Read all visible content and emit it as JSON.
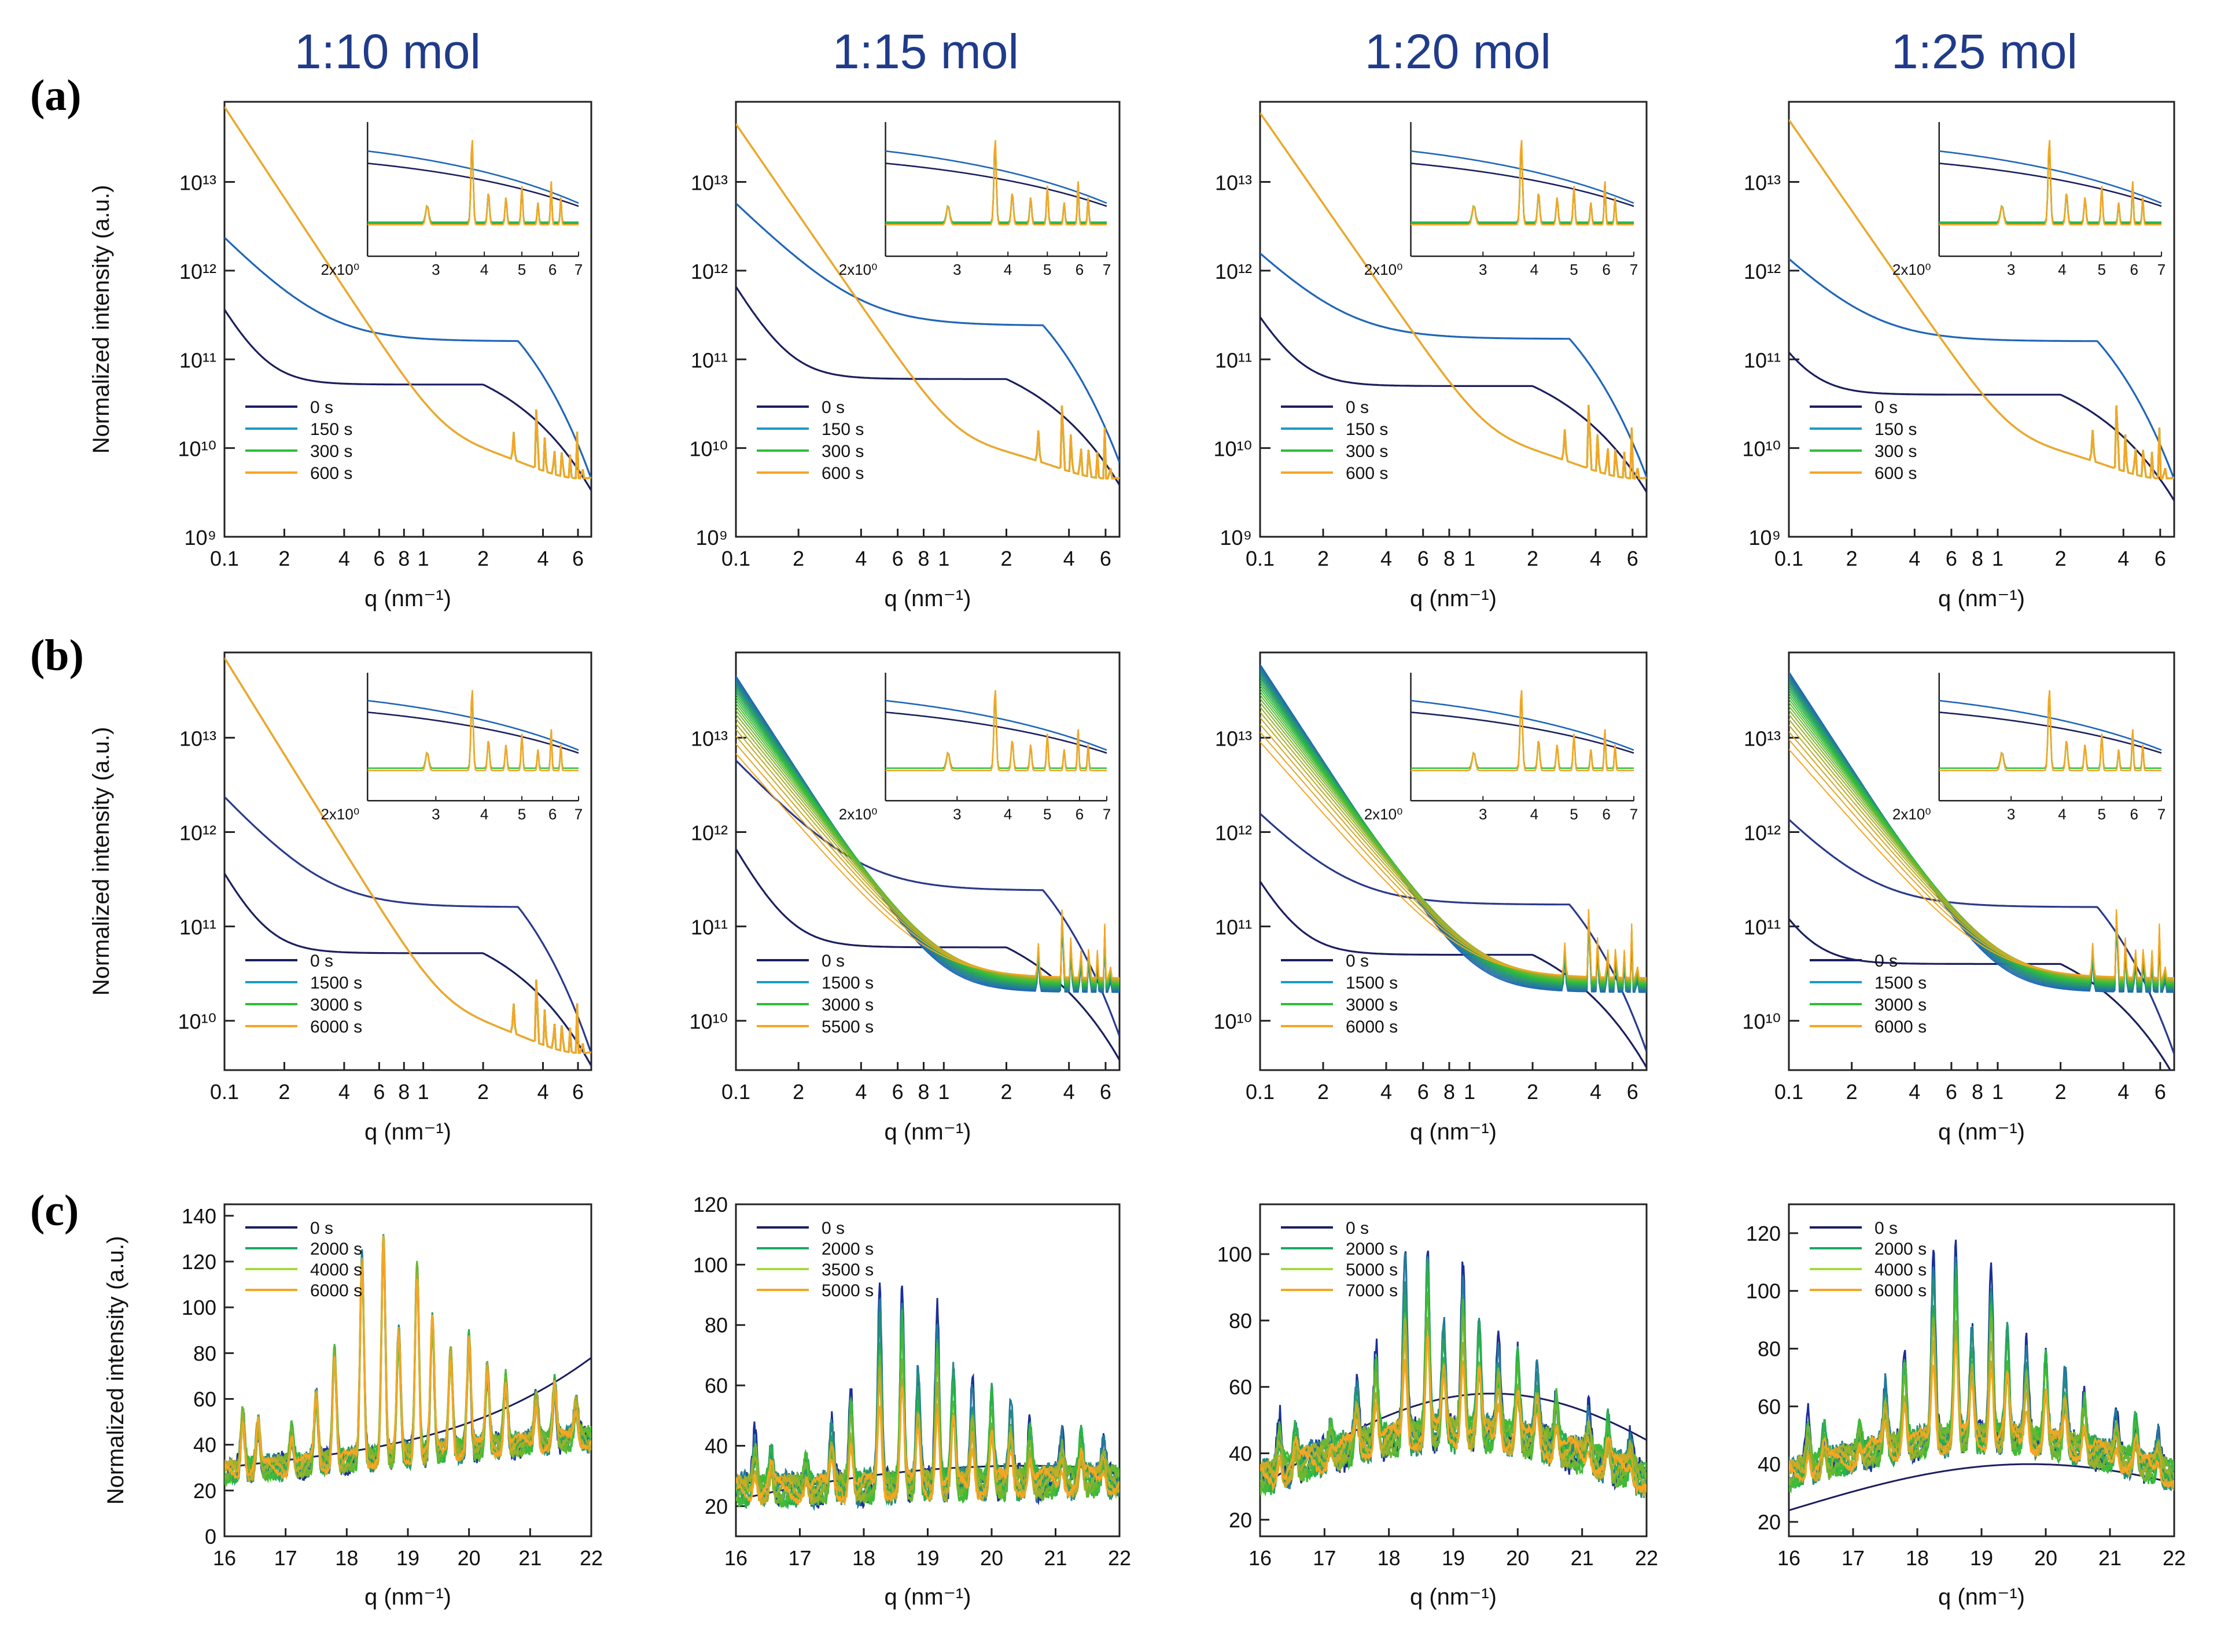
{
  "column_titles": [
    "1:10 mol",
    "1:15 mol",
    "1:20 mol",
    "1:25 mol"
  ],
  "row_labels": [
    "(a)",
    "(b)",
    "(c)"
  ],
  "colors": {
    "title": "#1f3b8a",
    "s0": "#1b1f5e",
    "s1": "#1f66b8",
    "s2": "#2dbd3a",
    "s3": "#f5a623"
  },
  "chart_data": [
    {
      "type": "line",
      "row": "a",
      "col": 0,
      "xscale": "log",
      "yscale": "log",
      "xlim": [
        0.1,
        7
      ],
      "ylim": [
        1000000000.0,
        80000000000000.0
      ],
      "xlabel": "q (nm⁻¹)",
      "ylabel": "Normalized intensity (a.u.)",
      "xticks": [
        "0.1",
        "2",
        "4",
        "6",
        "8",
        "1",
        "2",
        "4",
        "6"
      ],
      "yticks": [
        "10⁹",
        "10¹⁰",
        "10¹¹",
        "10¹²",
        "10¹³"
      ],
      "legend": [
        "0 s",
        "150 s",
        "300 s",
        "600 s"
      ],
      "inset": {
        "xticks": [
          "2x10⁰",
          "3",
          "4",
          "5",
          "6",
          "7"
        ]
      }
    },
    {
      "type": "line",
      "row": "a",
      "col": 1,
      "xscale": "log",
      "yscale": "log",
      "xlim": [
        0.1,
        7
      ],
      "ylim": [
        1000000000.0,
        80000000000000.0
      ],
      "xlabel": "q (nm⁻¹)",
      "ylabel": "",
      "xticks": [
        "0.1",
        "2",
        "4",
        "6",
        "8",
        "1",
        "2",
        "4",
        "6"
      ],
      "yticks": [
        "10⁹",
        "10¹⁰",
        "10¹¹",
        "10¹²",
        "10¹³"
      ],
      "legend": [
        "0 s",
        "150 s",
        "300 s",
        "600 s"
      ],
      "inset": {
        "xticks": [
          "2x10⁰",
          "3",
          "4",
          "5",
          "6",
          "7"
        ]
      }
    },
    {
      "type": "line",
      "row": "a",
      "col": 2,
      "xscale": "log",
      "yscale": "log",
      "xlim": [
        0.1,
        7
      ],
      "ylim": [
        1000000000.0,
        80000000000000.0
      ],
      "xlabel": "q (nm⁻¹)",
      "ylabel": "",
      "xticks": [
        "0.1",
        "2",
        "4",
        "6",
        "8",
        "1",
        "2",
        "4",
        "6"
      ],
      "yticks": [
        "10⁹",
        "10¹⁰",
        "10¹¹",
        "10¹²",
        "10¹³"
      ],
      "legend": [
        "0 s",
        "150 s",
        "300 s",
        "600 s"
      ],
      "inset": {
        "xticks": [
          "2x10⁰",
          "3",
          "4",
          "5",
          "6",
          "7"
        ]
      }
    },
    {
      "type": "line",
      "row": "a",
      "col": 3,
      "xscale": "log",
      "yscale": "log",
      "xlim": [
        0.1,
        7
      ],
      "ylim": [
        1000000000.0,
        80000000000000.0
      ],
      "xlabel": "q (nm⁻¹)",
      "ylabel": "",
      "xticks": [
        "0.1",
        "2",
        "4",
        "6",
        "8",
        "1",
        "2",
        "4",
        "6"
      ],
      "yticks": [
        "10⁹",
        "10¹⁰",
        "10¹¹",
        "10¹²",
        "10¹³"
      ],
      "legend": [
        "0 s",
        "150 s",
        "300 s",
        "600 s"
      ],
      "inset": {
        "xticks": [
          "2x10⁰",
          "3",
          "4",
          "5",
          "6",
          "7"
        ]
      }
    },
    {
      "type": "line",
      "row": "b",
      "col": 0,
      "xscale": "log",
      "yscale": "log",
      "xlim": [
        0.1,
        7
      ],
      "ylim": [
        3000000000.0,
        80000000000000.0
      ],
      "xlabel": "q (nm⁻¹)",
      "ylabel": "Normalized intensity (a.u.)",
      "xticks": [
        "0.1",
        "2",
        "4",
        "6",
        "8",
        "1",
        "2",
        "4",
        "6"
      ],
      "yticks": [
        "10¹⁰",
        "10¹¹",
        "10¹²",
        "10¹³"
      ],
      "legend": [
        "0 s",
        "1500 s",
        "3000 s",
        "6000 s"
      ],
      "inset": {
        "xticks": [
          "2x10⁰",
          "3",
          "4",
          "5",
          "6",
          "7"
        ]
      }
    },
    {
      "type": "line",
      "row": "b",
      "col": 1,
      "xscale": "log",
      "yscale": "log",
      "xlim": [
        0.1,
        7
      ],
      "ylim": [
        3000000000.0,
        80000000000000.0
      ],
      "xlabel": "q (nm⁻¹)",
      "ylabel": "",
      "xticks": [
        "0.1",
        "2",
        "4",
        "6",
        "8",
        "1",
        "2",
        "4",
        "6"
      ],
      "yticks": [
        "10¹⁰",
        "10¹¹",
        "10¹²",
        "10¹³"
      ],
      "legend": [
        "0 s",
        "1500 s",
        "3000 s",
        "5500 s"
      ],
      "inset": {
        "xticks": [
          "2x10⁰",
          "3",
          "4",
          "5",
          "6",
          "7"
        ]
      }
    },
    {
      "type": "line",
      "row": "b",
      "col": 2,
      "xscale": "log",
      "yscale": "log",
      "xlim": [
        0.1,
        7
      ],
      "ylim": [
        3000000000.0,
        80000000000000.0
      ],
      "xlabel": "q (nm⁻¹)",
      "ylabel": "",
      "xticks": [
        "0.1",
        "2",
        "4",
        "6",
        "8",
        "1",
        "2",
        "4",
        "6"
      ],
      "yticks": [
        "10¹⁰",
        "10¹¹",
        "10¹²",
        "10¹³"
      ],
      "legend": [
        "0 s",
        "1500 s",
        "3000 s",
        "6000 s"
      ],
      "inset": {
        "xticks": [
          "2x10⁰",
          "3",
          "4",
          "5",
          "6",
          "7"
        ]
      }
    },
    {
      "type": "line",
      "row": "b",
      "col": 3,
      "xscale": "log",
      "yscale": "log",
      "xlim": [
        0.1,
        7
      ],
      "ylim": [
        3000000000.0,
        80000000000000.0
      ],
      "xlabel": "q (nm⁻¹)",
      "ylabel": "",
      "xticks": [
        "0.1",
        "2",
        "4",
        "6",
        "8",
        "1",
        "2",
        "4",
        "6"
      ],
      "yticks": [
        "10¹⁰",
        "10¹¹",
        "10¹²",
        "10¹³"
      ],
      "legend": [
        "0 s",
        "1500 s",
        "3000 s",
        "6000 s"
      ],
      "inset": {
        "xticks": [
          "2x10⁰",
          "3",
          "4",
          "5",
          "6",
          "7"
        ]
      }
    },
    {
      "type": "line",
      "row": "c",
      "col": 0,
      "xscale": "linear",
      "yscale": "linear",
      "xlim": [
        16,
        22
      ],
      "ylim": [
        0,
        145
      ],
      "xlabel": "q (nm⁻¹)",
      "ylabel": "Normalized intensity (a.u.)",
      "xticks": [
        "16",
        "17",
        "18",
        "19",
        "20",
        "21",
        "22"
      ],
      "ytickvals": [
        0,
        20,
        40,
        60,
        80,
        100,
        120,
        140
      ],
      "yticks": [
        "0",
        "20",
        "40",
        "60",
        "80",
        "100",
        "120",
        "140"
      ],
      "legend": [
        "0 s",
        "2000 s",
        "4000 s",
        "6000 s"
      ]
    },
    {
      "type": "line",
      "row": "c",
      "col": 1,
      "xscale": "linear",
      "yscale": "linear",
      "xlim": [
        16,
        22
      ],
      "ylim": [
        10,
        120
      ],
      "xlabel": "q (nm⁻¹)",
      "ylabel": "",
      "xticks": [
        "16",
        "17",
        "18",
        "19",
        "20",
        "21",
        "22"
      ],
      "ytickvals": [
        20,
        40,
        60,
        80,
        100,
        120
      ],
      "yticks": [
        "20",
        "40",
        "60",
        "80",
        "100",
        "120"
      ],
      "legend": [
        "0 s",
        "2000 s",
        "3500 s",
        "5000 s"
      ]
    },
    {
      "type": "line",
      "row": "c",
      "col": 2,
      "xscale": "linear",
      "yscale": "linear",
      "xlim": [
        16,
        22
      ],
      "ylim": [
        15,
        115
      ],
      "xlabel": "q (nm⁻¹)",
      "ylabel": "",
      "xticks": [
        "16",
        "17",
        "18",
        "19",
        "20",
        "21",
        "22"
      ],
      "ytickvals": [
        20,
        40,
        60,
        80,
        100
      ],
      "yticks": [
        "20",
        "40",
        "60",
        "80",
        "100"
      ],
      "legend": [
        "0 s",
        "2000 s",
        "5000 s",
        "7000 s"
      ]
    },
    {
      "type": "line",
      "row": "c",
      "col": 3,
      "xscale": "linear",
      "yscale": "linear",
      "xlim": [
        16,
        22
      ],
      "ylim": [
        15,
        130
      ],
      "xlabel": "q (nm⁻¹)",
      "ylabel": "",
      "xticks": [
        "16",
        "17",
        "18",
        "19",
        "20",
        "21",
        "22"
      ],
      "ytickvals": [
        20,
        40,
        60,
        80,
        100,
        120
      ],
      "yticks": [
        "20",
        "40",
        "60",
        "80",
        "100",
        "120"
      ],
      "legend": [
        "0 s",
        "2000 s",
        "4000 s",
        "6000 s"
      ]
    }
  ]
}
